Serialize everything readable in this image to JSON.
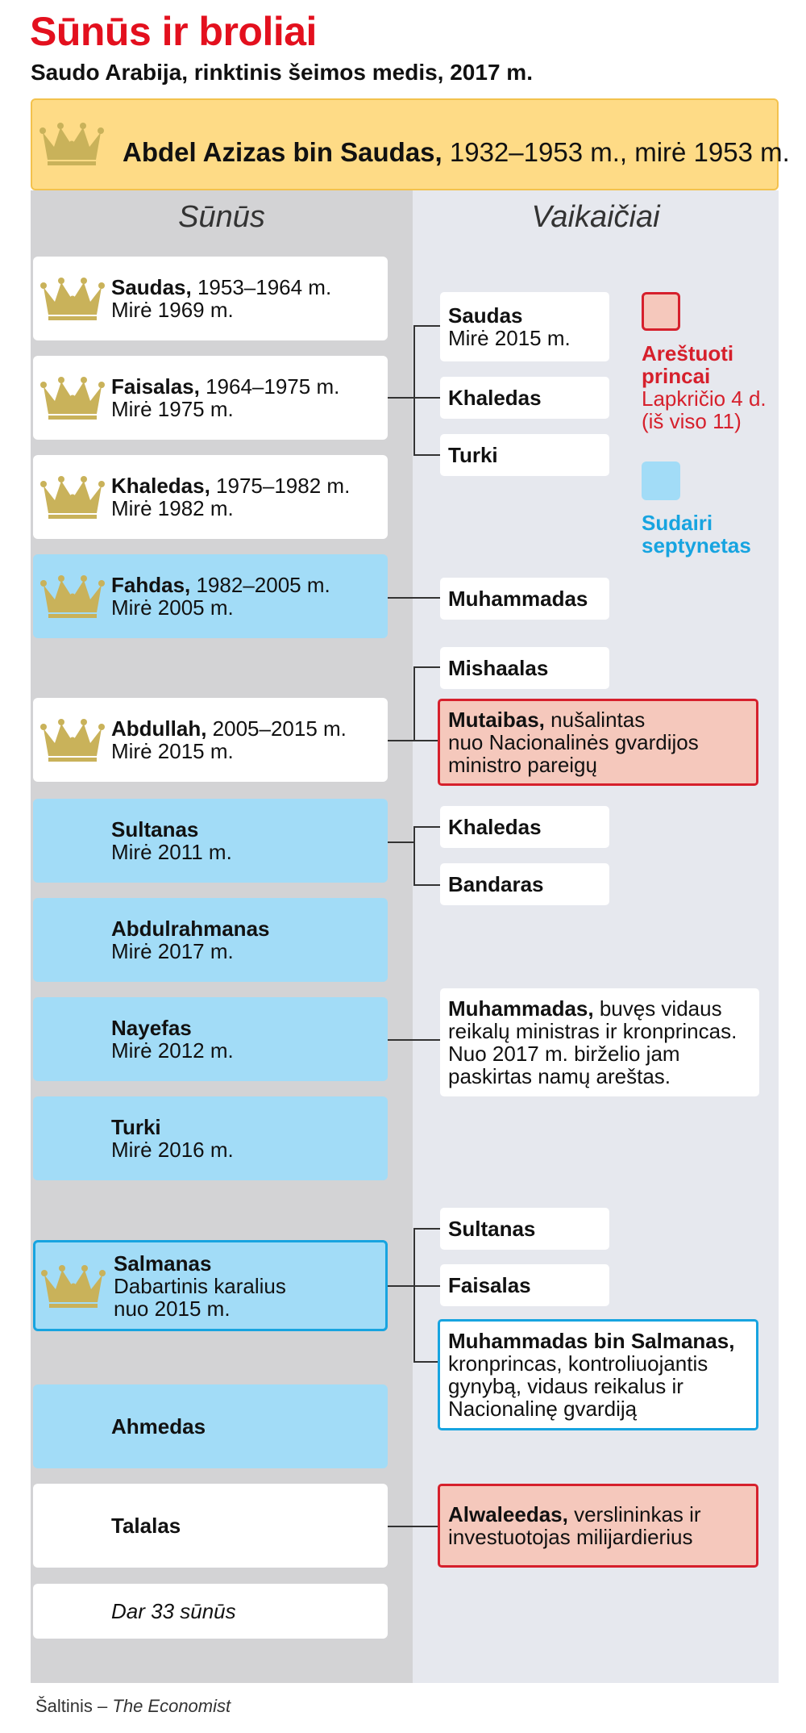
{
  "title": "Sūnūs ir broliai",
  "subtitle": "Saudo Arabija, rinktinis šeimos medis, 2017 m.",
  "root": {
    "name": "Abdel Azizas bin Saudas,",
    "detail": " 1932–1953 m., mirė 1953 m."
  },
  "columns": {
    "sons": "Sūnūs",
    "grandchildren": "Vaikaičiai"
  },
  "sons": [
    {
      "name": "Saudas,",
      "reign": " 1953–1964 m.",
      "line2": "Mirė 1969 m."
    },
    {
      "name": "Faisalas,",
      "reign": " 1964–1975 m.",
      "line2": "Mirė 1975 m."
    },
    {
      "name": "Khaledas,",
      "reign": " 1975–1982 m.",
      "line2": "Mirė 1982 m."
    },
    {
      "name": "Fahdas,",
      "reign": " 1982–2005 m.",
      "line2": "Mirė 2005 m."
    },
    {
      "name": "Abdullah,",
      "reign": " 2005–2015 m.",
      "line2": "Mirė 2015 m."
    },
    {
      "name": "Sultanas",
      "line2": "Mirė 2011 m."
    },
    {
      "name": "Abdulrahmanas",
      "line2": "Mirė 2017 m."
    },
    {
      "name": "Nayefas",
      "line2": "Mirė 2012 m."
    },
    {
      "name": "Turki",
      "line2": "Mirė 2016 m."
    },
    {
      "name": "Salmanas",
      "line2": "Dabartinis karalius",
      "line3": "nuo 2015 m."
    },
    {
      "name": "Ahmedas"
    },
    {
      "name": "Talalas"
    },
    {
      "other": "Dar 33 sūnūs"
    }
  ],
  "grandchildren": {
    "saudas": {
      "name": "Saudas",
      "line2": "Mirė 2015 m."
    },
    "khaledas": {
      "name": "Khaledas"
    },
    "turki": {
      "name": "Turki"
    },
    "muhammadas_fahd": {
      "name": "Muhammadas"
    },
    "mishaalas": {
      "name": "Mishaalas"
    },
    "mutaibas": {
      "name": "Mutaibas,",
      "desc": " nušalintas",
      "line2": "nuo Nacionalinės gvardijos",
      "line3": "ministro pareigų"
    },
    "khaledas_sultan": {
      "name": "Khaledas"
    },
    "bandaras": {
      "name": "Bandaras"
    },
    "muhammadas_nayef": {
      "name": "Muhammadas,",
      "desc": " buvęs vidaus",
      "line2": "reikalų ministras ir kronprincas.",
      "line3": "Nuo 2017 m. birželio jam",
      "line4": "paskirtas namų areštas."
    },
    "sultanas": {
      "name": "Sultanas"
    },
    "faisalas": {
      "name": "Faisalas"
    },
    "mbs": {
      "name": "Muhammadas bin Salmanas,",
      "line2": "kronprincas, kontroliuojantis",
      "line3": "gynybą, vidaus reikalus ir",
      "line4": "Nacionalinę gvardiją"
    },
    "alwaleedas": {
      "name": "Alwaleedas,",
      "desc": " verslininkas ir",
      "line2": "investuotojas milijardierius"
    }
  },
  "legend": {
    "arrested_title": "Areštuoti princai",
    "arrested_sub": "Lapkričio 4 d. (iš viso 11)",
    "sudairi": "Sudairi septynetas"
  },
  "colors": {
    "title_red": "#e3101e",
    "root_yellow": "#fedb86",
    "sudairi_blue": "#a2dcf7",
    "arrested_fill": "#f5c8bc",
    "arrested_border": "#d6202c",
    "crown_gold": "#c9b25a"
  },
  "source": {
    "prefix": "Šaltinis – ",
    "name": "The Economist"
  }
}
